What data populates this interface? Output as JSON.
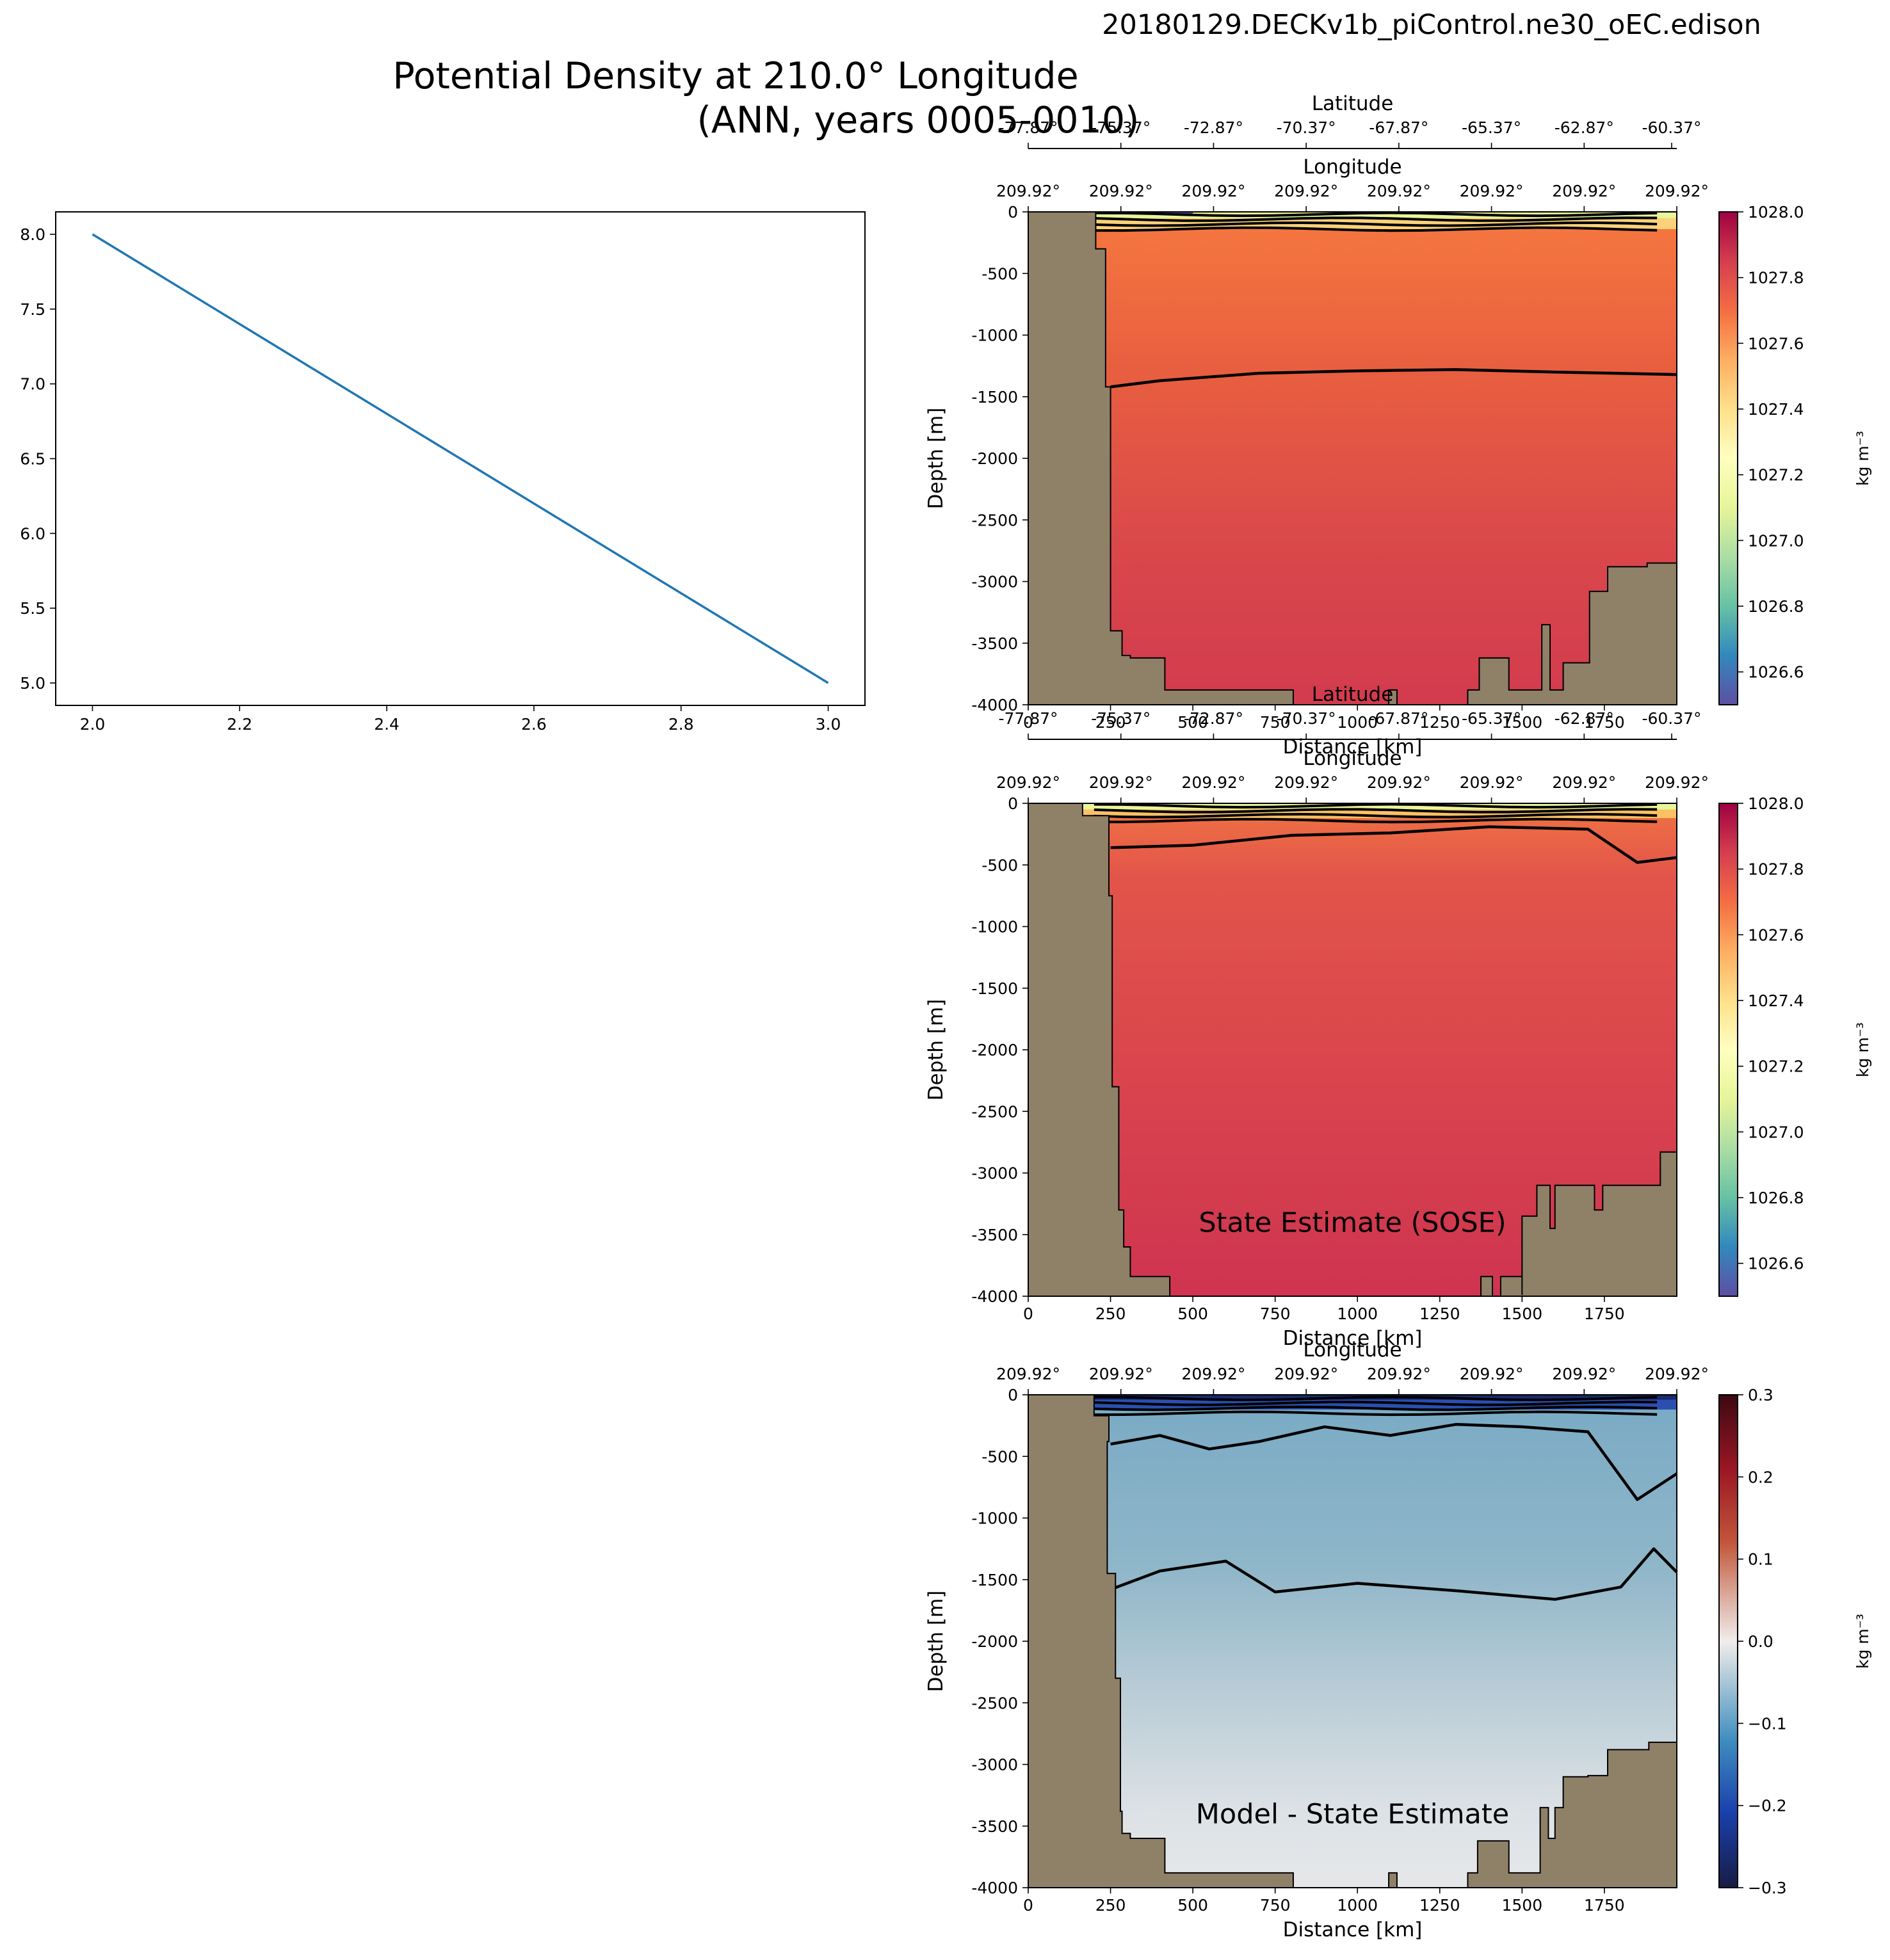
{
  "figure": {
    "run_name": "20180129.DECKv1b_piControl.ne30_oEC.edison",
    "title_line1": "Potential Density at 210.0° Longitude",
    "title_line2": "(ANN, years 0005-0010)"
  },
  "colors": {
    "land": "#8f8068",
    "line_blue": "#1f77b4",
    "contour": "#000000"
  },
  "chart_data": [
    {
      "type": "line",
      "panel": "left-line",
      "x": [
        2.0,
        3.0
      ],
      "y": [
        8.0,
        5.0
      ],
      "xlim": [
        1.95,
        3.05
      ],
      "ylim": [
        4.85,
        8.15
      ],
      "xticks": [
        "2.0",
        "2.2",
        "2.4",
        "2.6",
        "2.8",
        "3.0"
      ],
      "yticks": [
        "5.0",
        "5.5",
        "6.0",
        "6.5",
        "7.0",
        "7.5",
        "8.0"
      ],
      "xlabel": "",
      "ylabel": ""
    },
    {
      "type": "heatmap",
      "panel": "model",
      "ylabel": "Depth [m]",
      "xlabel": "Distance [km]",
      "top_axis_label": "Longitude",
      "top_axis_ticks": [
        "209.92°",
        "209.92°",
        "209.92°",
        "209.92°",
        "209.92°",
        "209.92°",
        "209.92°",
        "209.92°"
      ],
      "lat_axis_label": "Latitude",
      "lat_axis_ticks": [
        "-77.87°",
        "-75.37°",
        "-72.87°",
        "-70.37°",
        "-67.87°",
        "-65.37°",
        "-62.87°",
        "-60.37°"
      ],
      "xlim": [
        0,
        1970
      ],
      "ylim": [
        -4000,
        0
      ],
      "xticks": [
        "0",
        "250",
        "500",
        "750",
        "1000",
        "1250",
        "1500",
        "1750"
      ],
      "yticks": [
        "0",
        "-500",
        "-1000",
        "-1500",
        "-2000",
        "-2500",
        "-3000",
        "-3500",
        "-4000"
      ],
      "colorbar": {
        "label": "kg m⁻³",
        "range": [
          1026.5,
          1028.0
        ],
        "ticks": [
          "1028.0",
          "1027.8",
          "1027.6",
          "1027.4",
          "1027.2",
          "1027.0",
          "1026.8",
          "1026.6"
        ],
        "colormap": "Spectral_r"
      },
      "contour_depths": [
        {
          "x": [
            250,
            400,
            700,
            1000,
            1300,
            1600,
            1970
          ],
          "y": [
            -1420,
            -1370,
            -1310,
            -1290,
            -1280,
            -1300,
            -1320
          ]
        }
      ]
    },
    {
      "type": "heatmap",
      "panel": "obs",
      "label": "State Estimate (SOSE)",
      "ylabel": "Depth [m]",
      "xlabel": "Distance [km]",
      "top_axis_label": "Longitude",
      "top_axis_ticks": [
        "209.92°",
        "209.92°",
        "209.92°",
        "209.92°",
        "209.92°",
        "209.92°",
        "209.92°",
        "209.92°"
      ],
      "lat_axis_label": "Latitude",
      "lat_axis_ticks": [
        "-77.87°",
        "-75.37°",
        "-72.87°",
        "-70.37°",
        "-67.87°",
        "-65.37°",
        "-62.87°",
        "-60.37°"
      ],
      "xlim": [
        0,
        1970
      ],
      "ylim": [
        -4000,
        0
      ],
      "xticks": [
        "0",
        "250",
        "500",
        "750",
        "1000",
        "1250",
        "1500",
        "1750"
      ],
      "yticks": [
        "0",
        "-500",
        "-1000",
        "-1500",
        "-2000",
        "-2500",
        "-3000",
        "-3500",
        "-4000"
      ],
      "colorbar": {
        "label": "kg m⁻³",
        "range": [
          1026.5,
          1028.0
        ],
        "ticks": [
          "1028.0",
          "1027.8",
          "1027.6",
          "1027.4",
          "1027.2",
          "1027.0",
          "1026.8",
          "1026.6"
        ],
        "colormap": "Spectral_r"
      },
      "contour_depths": [
        {
          "x": [
            250,
            500,
            800,
            1100,
            1400,
            1700,
            1850,
            1970
          ],
          "y": [
            -360,
            -340,
            -260,
            -240,
            -190,
            -210,
            -480,
            -440
          ]
        }
      ]
    },
    {
      "type": "heatmap",
      "panel": "difference",
      "label": "Model - State Estimate",
      "ylabel": "Depth [m]",
      "xlabel": "Distance [km]",
      "top_axis_label": "Longitude",
      "top_axis_ticks": [
        "209.92°",
        "209.92°",
        "209.92°",
        "209.92°",
        "209.92°",
        "209.92°",
        "209.92°",
        "209.92°"
      ],
      "xlim": [
        0,
        1970
      ],
      "ylim": [
        -4000,
        0
      ],
      "xticks": [
        "0",
        "250",
        "500",
        "750",
        "1000",
        "1250",
        "1500",
        "1750"
      ],
      "yticks": [
        "0",
        "-500",
        "-1000",
        "-1500",
        "-2000",
        "-2500",
        "-3000",
        "-3500",
        "-4000"
      ],
      "colorbar": {
        "label": "kg m⁻³",
        "range": [
          -0.3,
          0.3
        ],
        "ticks": [
          "0.3",
          "0.2",
          "0.1",
          "0.0",
          "−0.1",
          "−0.2",
          "−0.3"
        ],
        "colormap": "balance"
      },
      "contour_depths": [
        {
          "x": [
            250,
            400,
            550,
            700,
            900,
            1100,
            1300,
            1500,
            1700,
            1850,
            1970
          ],
          "y": [
            -400,
            -330,
            -440,
            -380,
            -260,
            -330,
            -240,
            -260,
            -300,
            -850,
            -640
          ]
        },
        {
          "x": [
            250,
            400,
            600,
            750,
            1000,
            1300,
            1600,
            1800,
            1900,
            1970
          ],
          "y": [
            -1580,
            -1430,
            -1350,
            -1600,
            -1530,
            -1590,
            -1660,
            -1560,
            -1250,
            -1440
          ]
        }
      ]
    }
  ]
}
